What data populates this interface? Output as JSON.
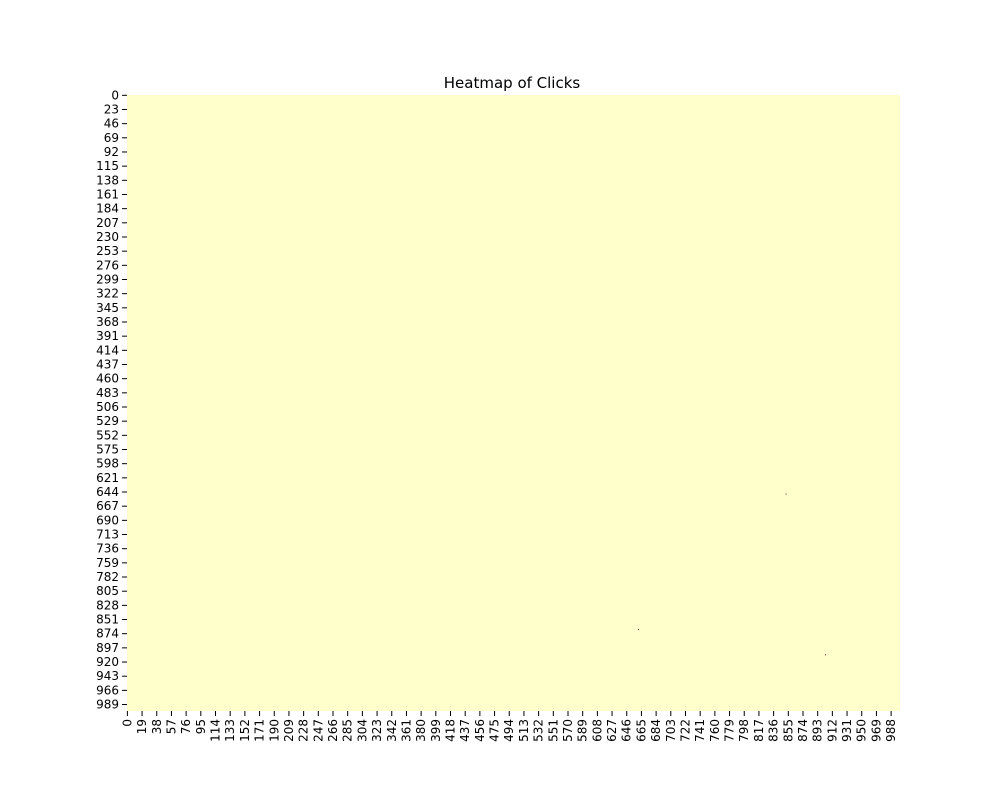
{
  "chart_data": {
    "type": "heatmap",
    "title": "Heatmap of Clicks",
    "xlabel": "",
    "ylabel": "",
    "x_tick_labels": [
      "0",
      "19",
      "38",
      "57",
      "76",
      "95",
      "114",
      "133",
      "152",
      "171",
      "190",
      "209",
      "228",
      "247",
      "266",
      "285",
      "304",
      "323",
      "342",
      "361",
      "380",
      "399",
      "418",
      "437",
      "456",
      "475",
      "494",
      "513",
      "532",
      "551",
      "570",
      "589",
      "608",
      "627",
      "646",
      "665",
      "684",
      "703",
      "722",
      "741",
      "760",
      "779",
      "798",
      "817",
      "836",
      "855",
      "874",
      "893",
      "912",
      "931",
      "950",
      "969",
      "988"
    ],
    "y_tick_labels": [
      "0",
      "23",
      "46",
      "69",
      "92",
      "115",
      "138",
      "161",
      "184",
      "207",
      "230",
      "253",
      "276",
      "299",
      "322",
      "345",
      "368",
      "391",
      "414",
      "437",
      "460",
      "483",
      "506",
      "529",
      "552",
      "575",
      "598",
      "621",
      "644",
      "667",
      "690",
      "713",
      "736",
      "759",
      "782",
      "805",
      "828",
      "851",
      "874",
      "897",
      "920",
      "943",
      "966",
      "989"
    ],
    "x_range": [
      0,
      999
    ],
    "y_range": [
      0,
      999
    ],
    "colorbar": false,
    "background_color": "#ffffcc",
    "hot_color": "#800026",
    "nonzero_cells": [
      {
        "x": 661,
        "y": 867
      },
      {
        "x": 852,
        "y": 647
      },
      {
        "x": 903,
        "y": 908
      }
    ]
  }
}
